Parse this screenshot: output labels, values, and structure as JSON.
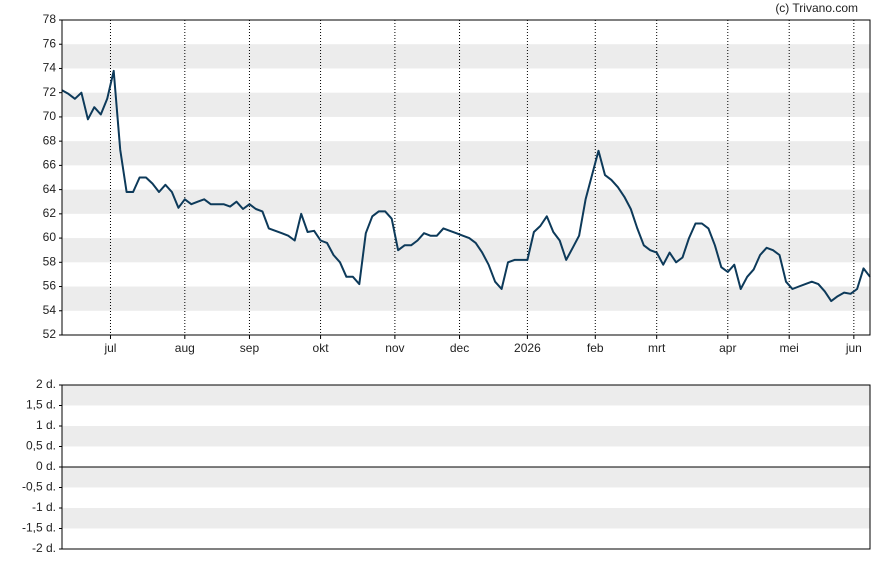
{
  "credit": "(c) Trivano.com",
  "chart_data": [
    {
      "type": "line",
      "xlim": [
        0,
        250
      ],
      "xticks": [
        {
          "value": 15,
          "label": "jul"
        },
        {
          "value": 38,
          "label": "aug"
        },
        {
          "value": 58,
          "label": "sep"
        },
        {
          "value": 80,
          "label": "okt"
        },
        {
          "value": 103,
          "label": "nov"
        },
        {
          "value": 123,
          "label": "dec"
        },
        {
          "value": 144,
          "label": "2026"
        },
        {
          "value": 165,
          "label": "feb"
        },
        {
          "value": 184,
          "label": "mrt"
        },
        {
          "value": 206,
          "label": "apr"
        },
        {
          "value": 225,
          "label": "mei"
        },
        {
          "value": 245,
          "label": "jun"
        }
      ],
      "ylim": [
        52,
        78
      ],
      "yticks": [
        52,
        54,
        56,
        58,
        60,
        62,
        64,
        66,
        68,
        70,
        72,
        74,
        76,
        78
      ],
      "color": "#0d3a5a",
      "x": [
        0,
        2,
        4,
        6,
        8,
        10,
        12,
        14,
        16,
        18,
        20,
        22,
        24,
        26,
        28,
        30,
        32,
        34,
        36,
        38,
        40,
        42,
        44,
        46,
        48,
        50,
        52,
        54,
        56,
        58,
        60,
        62,
        64,
        66,
        68,
        70,
        72,
        74,
        76,
        78,
        80,
        82,
        84,
        86,
        88,
        90,
        92,
        94,
        96,
        98,
        100,
        102,
        104,
        106,
        108,
        110,
        112,
        114,
        116,
        118,
        120,
        122,
        124,
        126,
        128,
        130,
        132,
        134,
        136,
        138,
        140,
        142,
        144,
        146,
        148,
        150,
        152,
        154,
        156,
        158,
        160,
        162,
        164,
        166,
        168,
        170,
        172,
        174,
        176,
        178,
        180,
        182,
        184,
        186,
        188,
        190,
        192,
        194,
        196,
        198,
        200,
        202,
        204,
        206,
        208,
        210,
        212,
        214,
        216,
        218,
        220,
        222,
        224,
        226,
        228,
        230,
        232,
        234,
        236,
        238,
        240,
        242,
        244,
        246,
        248,
        250
      ],
      "values": [
        72.2,
        71.9,
        71.5,
        72,
        69.8,
        70.8,
        70.2,
        71.5,
        73.8,
        67.3,
        63.8,
        63.8,
        65,
        65,
        64.5,
        63.8,
        64.4,
        63.8,
        62.5,
        63.2,
        62.8,
        63,
        63.2,
        62.8,
        62.8,
        62.8,
        62.6,
        63,
        62.4,
        62.8,
        62.4,
        62.2,
        60.8,
        60.6,
        60.4,
        60.2,
        59.8,
        62,
        60.5,
        60.6,
        59.8,
        59.6,
        58.6,
        58,
        56.8,
        56.8,
        56.2,
        60.4,
        61.8,
        62.2,
        62.2,
        61.6,
        59,
        59.4,
        59.4,
        59.8,
        60.4,
        60.2,
        60.2,
        60.8,
        60.6,
        60.4,
        60.2,
        60,
        59.6,
        58.8,
        57.8,
        56.4,
        55.8,
        58,
        58.2,
        58.2,
        58.2,
        60.5,
        61,
        61.8,
        60.5,
        59.8,
        58.2,
        59.2,
        60.2,
        63.2,
        65.2,
        67.2,
        65.2,
        64.8,
        64.2,
        63.4,
        62.4,
        60.8,
        59.4,
        59,
        58.8,
        57.8,
        58.8,
        58,
        58.4,
        60,
        61.2,
        61.2,
        60.8,
        59.4,
        57.6,
        57.2,
        57.8,
        55.8,
        56.8,
        57.4,
        58.6,
        59.2,
        59,
        58.6,
        56.4,
        55.8,
        56,
        56.2,
        56.4,
        56.2,
        55.6,
        54.8,
        55.2,
        55.5,
        55.4,
        55.8,
        57.5,
        56.8
      ]
    },
    {
      "type": "line",
      "ylim": [
        -2,
        2
      ],
      "yticks": [
        {
          "value": 2,
          "label": "2 d."
        },
        {
          "value": 1.5,
          "label": "1,5 d."
        },
        {
          "value": 1,
          "label": "1 d."
        },
        {
          "value": 0.5,
          "label": "0,5 d."
        },
        {
          "value": 0,
          "label": "0 d."
        },
        {
          "value": -0.5,
          "label": "-0,5 d."
        },
        {
          "value": -1,
          "label": "-1 d."
        },
        {
          "value": -1.5,
          "label": "-1,5 d."
        },
        {
          "value": -2,
          "label": "-2 d."
        }
      ]
    }
  ]
}
